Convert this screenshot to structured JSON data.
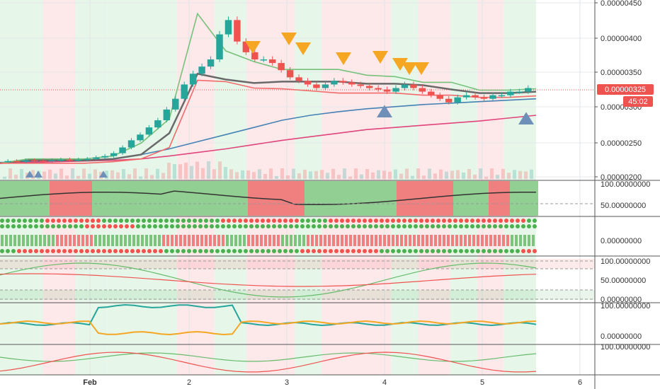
{
  "chart_data": {
    "type": "candlestick",
    "x_ticks": [
      "Feb",
      "2",
      "3",
      "4",
      "5",
      "6"
    ],
    "price_axis": {
      "ticks": [
        "0.00000450",
        "0.00000400",
        "0.00000350",
        "0.00000300",
        "0.00000250",
        "0.00000200"
      ],
      "ylim": [
        2e-06,
        4.5e-06
      ],
      "last_price_label": "0.00000325",
      "countdown_label": "45:02",
      "last_price": 3.25e-06
    },
    "candles_close": [
      2.23e-06,
      2.225e-06,
      2.24e-06,
      2.235e-06,
      2.23e-06,
      2.24e-06,
      2.25e-06,
      2.245e-06,
      2.25e-06,
      2.26e-06,
      2.28e-06,
      2.3e-06,
      2.34e-06,
      2.42e-06,
      2.52e-06,
      2.6e-06,
      2.7e-06,
      2.8e-06,
      2.95e-06,
      3.1e-06,
      3.3e-06,
      3.45e-06,
      3.55e-06,
      3.65e-06,
      4e-06,
      4.2e-06,
      3.9e-06,
      3.75e-06,
      3.65e-06,
      3.65e-06,
      3.6e-06,
      3.5e-06,
      3.4e-06,
      3.35e-06,
      3.3e-06,
      3.25e-06,
      3.3e-06,
      3.35e-06,
      3.33e-06,
      3.3e-06,
      3.28e-06,
      3.25e-06,
      3.23e-06,
      3.2e-06,
      3.25e-06,
      3.3e-06,
      3.25e-06,
      3.2e-06,
      3.15e-06,
      3.1e-06,
      3.05e-06,
      3.12e-06,
      3.15e-06,
      3.12e-06,
      3.1e-06,
      3.15e-06,
      3.15e-06,
      3.2e-06,
      3.2e-06,
      3.25e-06
    ],
    "overlay_lines": [
      {
        "name": "",
        "color": "#4682b4",
        "values": [
          2.21e-06,
          2.22e-06,
          2.23e-06,
          2.24e-06,
          2.26e-06,
          2.32e-06,
          2.4e-06,
          2.5e-06,
          2.6e-06,
          2.7e-06,
          2.8e-06,
          2.87e-06,
          2.92e-06,
          2.96e-06,
          2.99e-06,
          3.02e-06,
          3.04e-06,
          3.06e-06,
          3.08e-06,
          3.1e-06
        ]
      },
      {
        "name": "",
        "color": "#e0457b",
        "values": [
          2.2e-06,
          2.21e-06,
          2.22e-06,
          2.23e-06,
          2.24e-06,
          2.26e-06,
          2.3e-06,
          2.35e-06,
          2.4e-06,
          2.46e-06,
          2.52e-06,
          2.57e-06,
          2.62e-06,
          2.67e-06,
          2.7e-06,
          2.73e-06,
          2.76e-06,
          2.79e-06,
          2.83e-06,
          2.87e-06
        ]
      },
      {
        "name": "",
        "color": "#696969",
        "values": [
          2.2e-06,
          2.24e-06,
          2.24e-06,
          2.24e-06,
          2.26e-06,
          2.32e-06,
          2.62e-06,
          3.45e-06,
          3.37e-06,
          3.32e-06,
          3.34e-06,
          3.34e-06,
          3.34e-06,
          3.31e-06,
          3.31e-06,
          3.29e-06,
          3.23e-06,
          3.18e-06,
          3.18e-06,
          3.2e-06
        ]
      },
      {
        "name": "",
        "color": "#77c27b",
        "values": [
          2.2e-06,
          2.26e-06,
          2.26e-06,
          2.26e-06,
          2.3e-06,
          2.48e-06,
          2.82e-06,
          4.29e-06,
          3.77e-06,
          3.62e-06,
          3.51e-06,
          3.51e-06,
          3.51e-06,
          3.43e-06,
          3.41e-06,
          3.33e-06,
          3.33e-06,
          3.22e-06,
          3.22e-06,
          3.24e-06
        ]
      },
      {
        "name": "",
        "color": "#f26a6a",
        "values": [
          2.2e-06,
          2.2e-06,
          2.2e-06,
          2.2e-06,
          2.22e-06,
          2.26e-06,
          2.42e-06,
          3.36e-06,
          3.34e-06,
          3.25e-06,
          3.24e-06,
          3.21e-06,
          3.18e-06,
          3.18e-06,
          3.18e-06,
          3.15e-06,
          3.15e-06,
          3.12e-06,
          3.12e-06,
          3.14e-06
        ]
      }
    ],
    "sell_markers": 8,
    "buy_markers": 5,
    "panels": [
      {
        "name": "",
        "ticks": [
          "100.00000000",
          "50.00000000"
        ]
      },
      {
        "name": "",
        "ticks": [
          "0.00000000"
        ]
      },
      {
        "name": "",
        "ticks": [
          "100.00000000",
          "50.00000000",
          "0.00000000"
        ]
      },
      {
        "name": "",
        "ticks": [
          "100.00000000",
          "0.00000000"
        ]
      },
      {
        "name": "",
        "ticks": [
          "100.00000000"
        ]
      }
    ],
    "colors": {
      "up": "#26a69a",
      "down": "#ef5350",
      "bg_green": "#e6f7ea",
      "bg_red": "#fde8ea",
      "price_badge": "#ef5350",
      "sell_marker": "#f5a623",
      "buy_marker": "#6d8fb8"
    },
    "grid": true
  }
}
